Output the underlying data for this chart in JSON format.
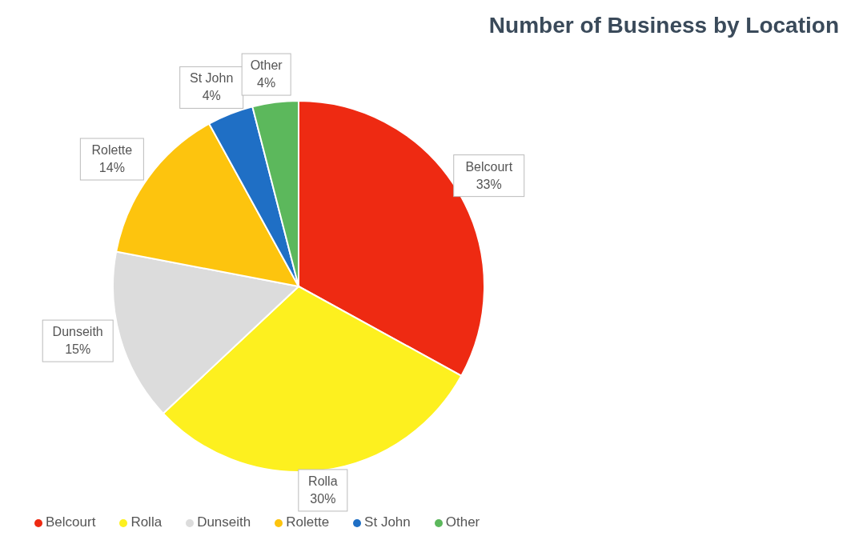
{
  "chart_data": {
    "type": "pie",
    "title": "Number of Business by Location",
    "categories": [
      "Belcourt",
      "Rolla",
      "Dunseith",
      "Rolette",
      "St John",
      "Other"
    ],
    "values": [
      33,
      30,
      15,
      14,
      4,
      4
    ],
    "value_labels": [
      "33%",
      "30%",
      "15%",
      "14%",
      "4%",
      "4%"
    ],
    "colors": [
      "#ee2a12",
      "#fdf01f",
      "#dcdcdc",
      "#fdc40e",
      "#1f6fc5",
      "#5cb85c"
    ],
    "legend": "bottom"
  }
}
